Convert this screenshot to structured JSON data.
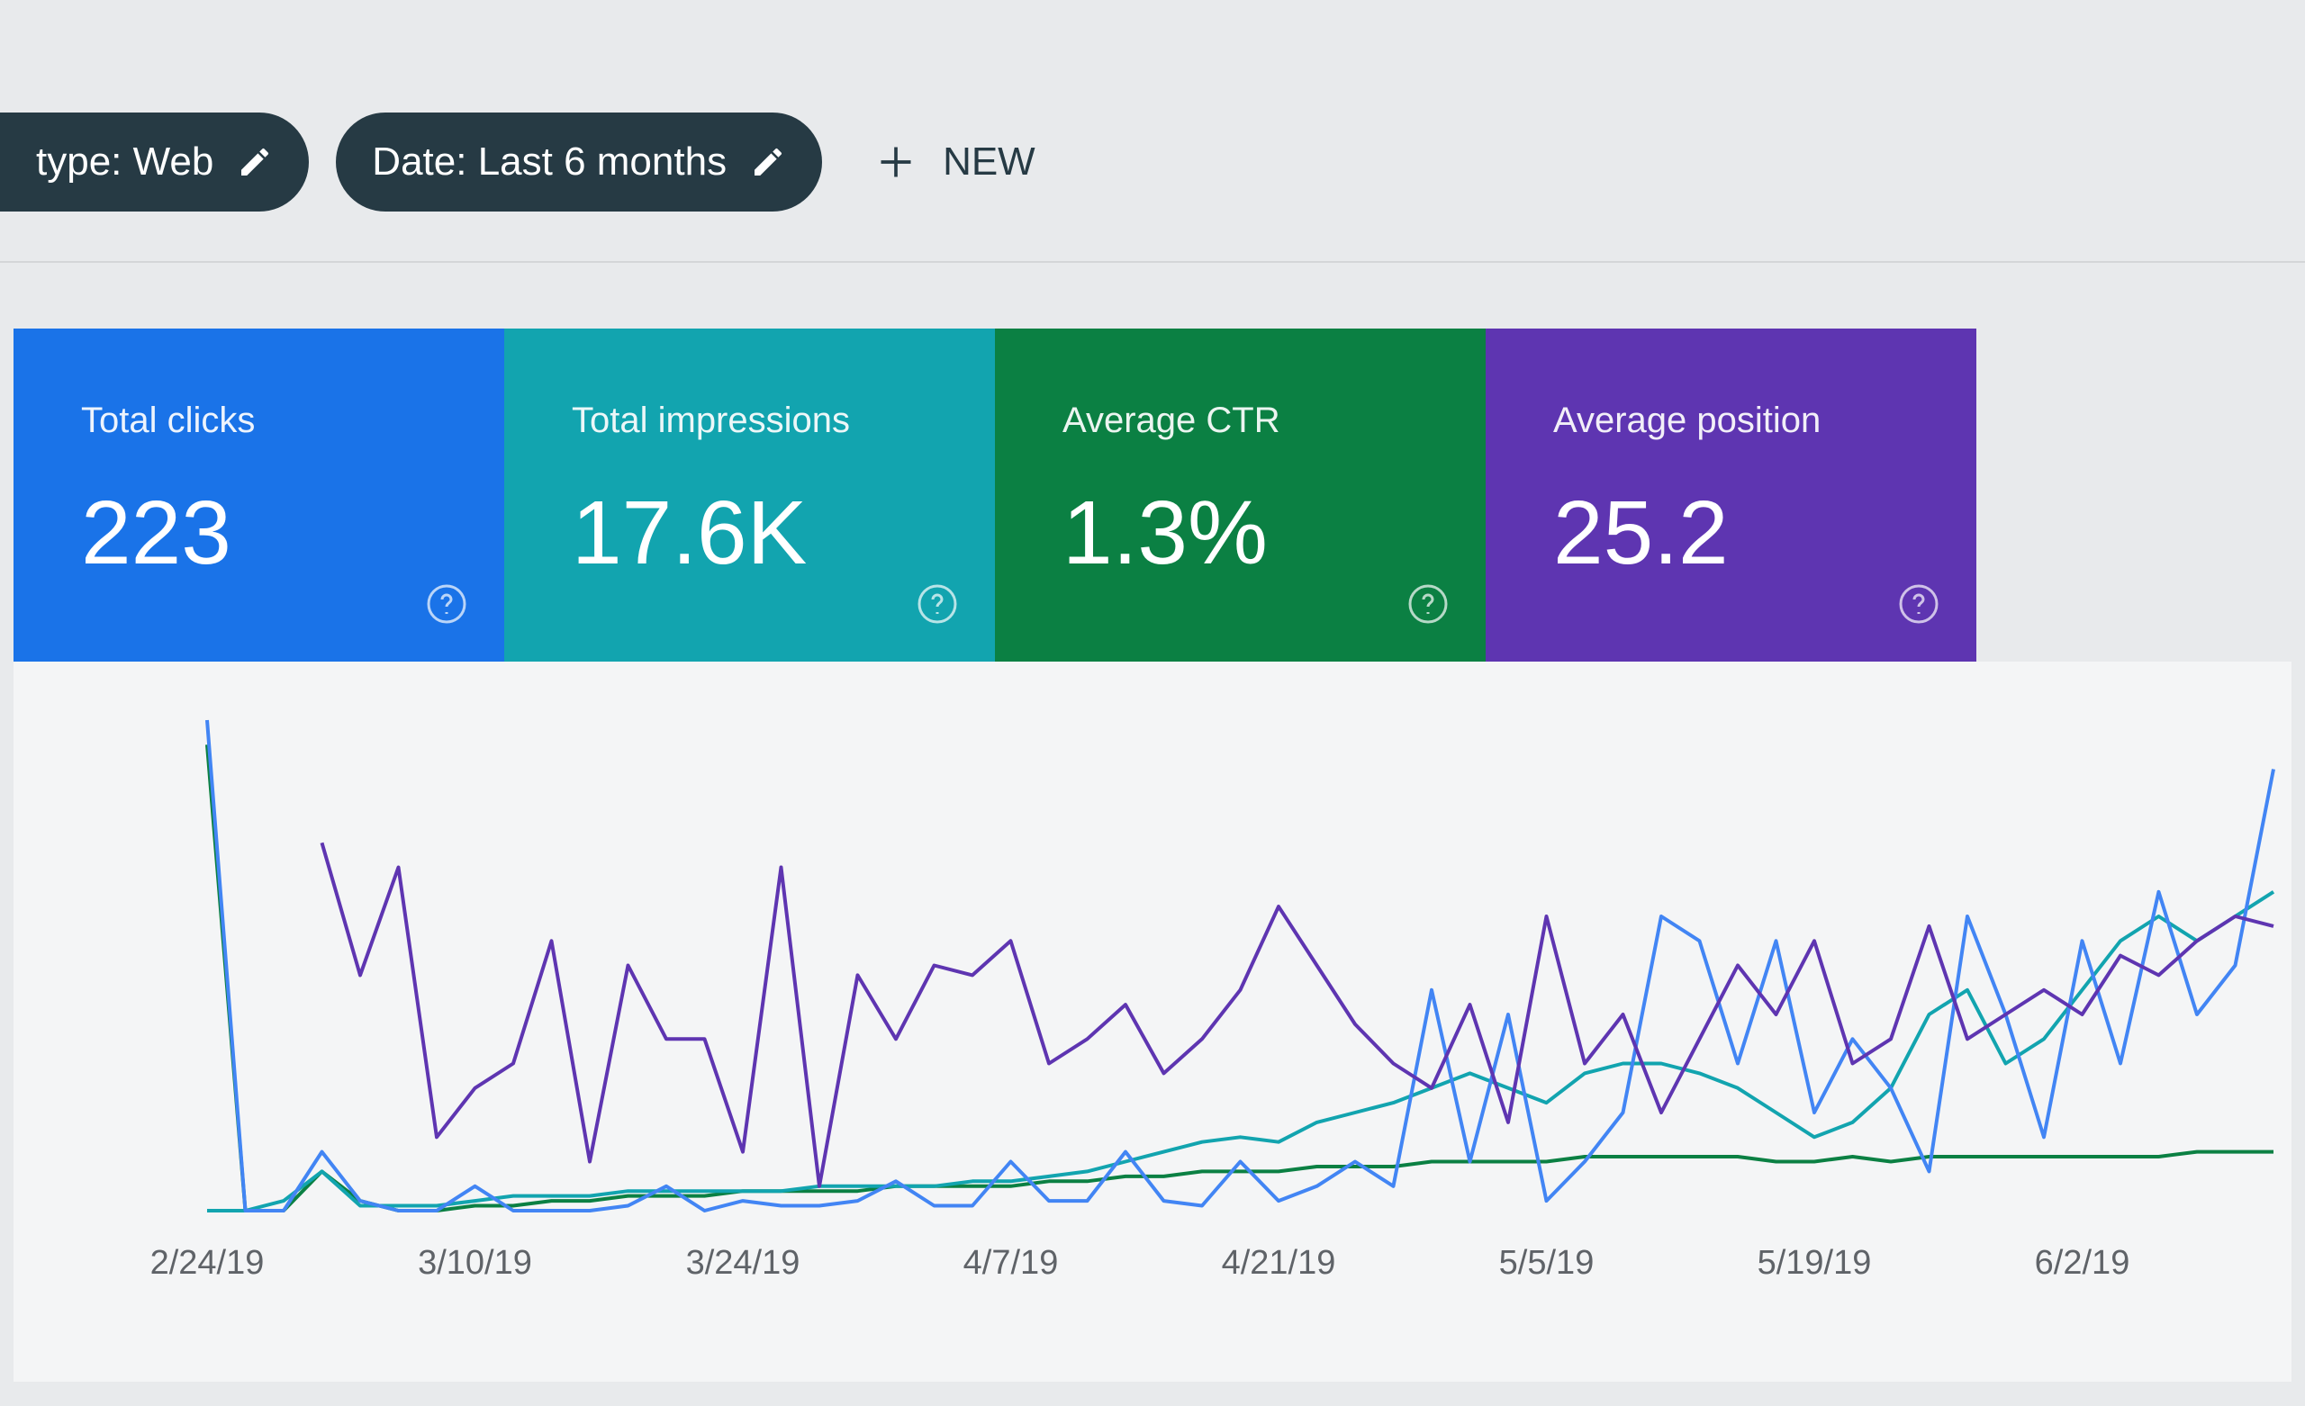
{
  "toolbar": {
    "chips": [
      "type: Web",
      "Date: Last 6 months"
    ],
    "new_button": "NEW"
  },
  "cards": [
    {
      "label": "Total clicks",
      "value": "223",
      "color": "#1a73e8"
    },
    {
      "label": "Total impressions",
      "value": "17.6K",
      "color": "#12a4af"
    },
    {
      "label": "Average CTR",
      "value": "1.3%",
      "color": "#0b8043"
    },
    {
      "label": "Average position",
      "value": "25.2",
      "color": "#5e35b1"
    }
  ],
  "chart": {
    "type": "line",
    "x_labels": [
      "2/24/19",
      "3/10/19",
      "3/24/19",
      "4/7/19",
      "4/21/19",
      "5/5/19",
      "5/19/19",
      "6/2/19"
    ],
    "ylim": [
      0,
      100
    ],
    "series": [
      {
        "color": "#0b8043",
        "values": [
          95,
          0,
          0,
          8,
          2,
          0,
          0,
          1,
          1,
          2,
          2,
          3,
          3,
          3,
          4,
          4,
          4,
          4,
          5,
          5,
          5,
          5,
          6,
          6,
          7,
          7,
          8,
          8,
          8,
          9,
          9,
          9,
          10,
          10,
          10,
          10,
          11,
          11,
          11,
          11,
          11,
          10,
          10,
          11,
          10,
          11,
          11,
          11,
          11,
          11,
          11,
          11,
          12,
          12,
          12
        ]
      },
      {
        "color": "#12a4af",
        "values": [
          0,
          0,
          2,
          8,
          1,
          1,
          1,
          2,
          3,
          3,
          3,
          4,
          4,
          4,
          4,
          4,
          5,
          5,
          5,
          5,
          6,
          6,
          7,
          8,
          10,
          12,
          14,
          15,
          14,
          18,
          20,
          22,
          25,
          28,
          25,
          22,
          28,
          30,
          30,
          28,
          25,
          20,
          15,
          18,
          25,
          40,
          45,
          30,
          35,
          45,
          55,
          60,
          55,
          60,
          65
        ]
      },
      {
        "color": "#4285f4",
        "values": [
          100,
          0,
          0,
          12,
          2,
          0,
          0,
          5,
          0,
          0,
          0,
          1,
          5,
          0,
          2,
          1,
          1,
          2,
          6,
          1,
          1,
          10,
          2,
          2,
          12,
          2,
          1,
          10,
          2,
          5,
          10,
          5,
          45,
          10,
          40,
          2,
          10,
          20,
          60,
          55,
          30,
          55,
          20,
          35,
          25,
          8,
          60,
          40,
          15,
          55,
          30,
          65,
          40,
          50,
          90
        ]
      },
      {
        "color": "#5e35b1",
        "values": [
          null,
          null,
          null,
          75,
          48,
          70,
          15,
          25,
          30,
          55,
          10,
          50,
          35,
          35,
          12,
          70,
          5,
          48,
          35,
          50,
          48,
          55,
          30,
          35,
          42,
          28,
          35,
          45,
          62,
          50,
          38,
          30,
          25,
          42,
          18,
          60,
          30,
          40,
          20,
          35,
          50,
          40,
          55,
          30,
          35,
          58,
          35,
          40,
          45,
          40,
          52,
          48,
          55,
          60,
          58
        ]
      }
    ]
  }
}
